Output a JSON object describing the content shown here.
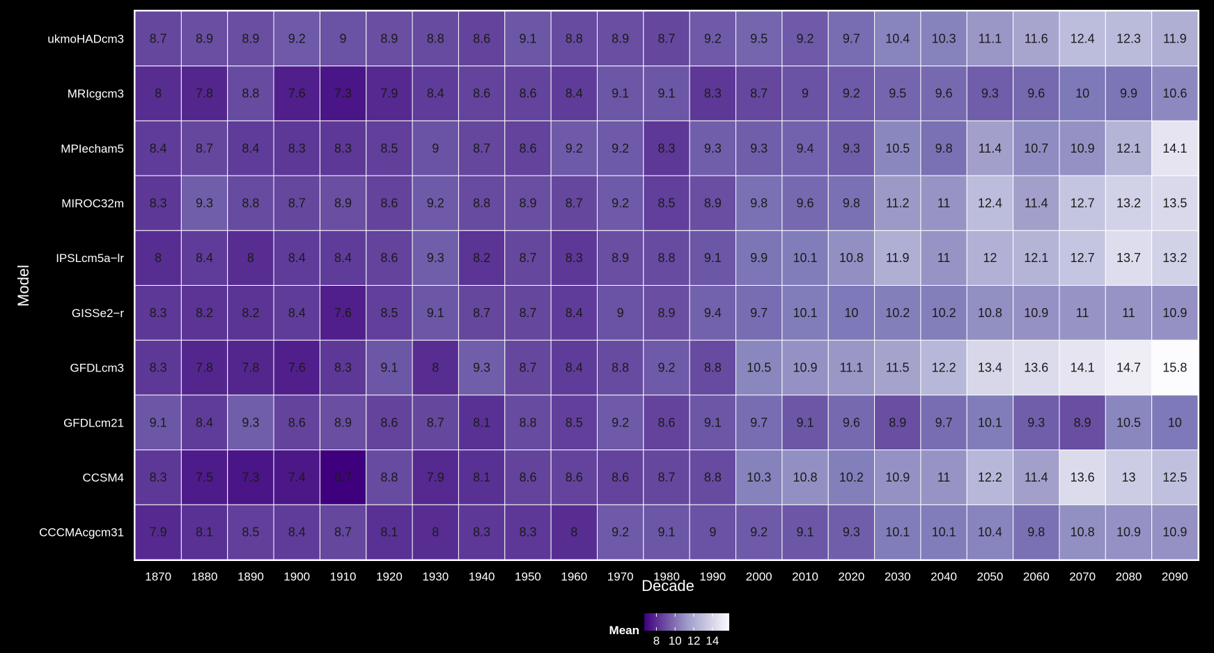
{
  "chart_data": {
    "type": "heatmap",
    "title": "",
    "xlabel": "Decade",
    "ylabel": "Model",
    "x": [
      "1870",
      "1880",
      "1890",
      "1900",
      "1910",
      "1920",
      "1930",
      "1940",
      "1950",
      "1960",
      "1970",
      "1980",
      "1990",
      "2000",
      "2010",
      "2020",
      "2030",
      "2040",
      "2050",
      "2060",
      "2070",
      "2080",
      "2090"
    ],
    "y": [
      "ukmoHADcm3",
      "MRIcgcm3",
      "MPIecham5",
      "MIROC32m",
      "IPSLcm5a−lr",
      "GISSe2−r",
      "GFDLcm3",
      "GFDLcm21",
      "CCSM4",
      "CCCMAcgcm31"
    ],
    "values": [
      [
        8.7,
        8.9,
        8.9,
        9.2,
        9,
        8.9,
        8.8,
        8.6,
        9.1,
        8.8,
        8.9,
        8.7,
        9.2,
        9.5,
        9.2,
        9.7,
        10.4,
        10.3,
        11.1,
        11.6,
        12.4,
        12.3,
        11.9
      ],
      [
        8,
        7.8,
        8.8,
        7.6,
        7.3,
        7.9,
        8.4,
        8.6,
        8.6,
        8.4,
        9.1,
        9.1,
        8.3,
        8.7,
        9,
        9.2,
        9.5,
        9.6,
        9.3,
        9.6,
        10,
        9.9,
        10.6
      ],
      [
        8.4,
        8.7,
        8.4,
        8.3,
        8.3,
        8.5,
        9,
        8.7,
        8.6,
        9.2,
        9.2,
        8.3,
        9.3,
        9.3,
        9.4,
        9.3,
        10.5,
        9.8,
        11.4,
        10.7,
        10.9,
        12.1,
        14.1
      ],
      [
        8.3,
        9.3,
        8.8,
        8.7,
        8.9,
        8.6,
        9.2,
        8.8,
        8.9,
        8.7,
        9.2,
        8.5,
        8.9,
        9.8,
        9.6,
        9.8,
        11.2,
        11,
        12.4,
        11.4,
        12.7,
        13.2,
        13.5
      ],
      [
        8,
        8.4,
        8,
        8.4,
        8.4,
        8.6,
        9.3,
        8.2,
        8.7,
        8.3,
        8.9,
        8.8,
        9.1,
        9.9,
        10.1,
        10.8,
        11.9,
        11,
        12,
        12.1,
        12.7,
        13.7,
        13.2
      ],
      [
        8.3,
        8.2,
        8.2,
        8.4,
        7.6,
        8.5,
        9.1,
        8.7,
        8.7,
        8.4,
        9,
        8.9,
        9.4,
        9.7,
        10.1,
        10,
        10.2,
        10.2,
        10.8,
        10.9,
        11,
        11,
        10.9
      ],
      [
        8.3,
        7.8,
        7.8,
        7.6,
        8.3,
        9.1,
        8,
        9.3,
        8.7,
        8.4,
        8.8,
        9.2,
        8.8,
        10.5,
        10.9,
        11.1,
        11.5,
        12.2,
        13.4,
        13.6,
        14.1,
        14.7,
        15.8
      ],
      [
        9.1,
        8.4,
        9.3,
        8.6,
        8.9,
        8.6,
        8.7,
        8.1,
        8.8,
        8.5,
        9.2,
        8.6,
        9.1,
        9.7,
        9.1,
        9.6,
        8.9,
        9.7,
        10.1,
        9.3,
        8.9,
        10.5,
        10
      ],
      [
        8.3,
        7.5,
        7.3,
        7.4,
        6.7,
        8.8,
        7.9,
        8.1,
        8.6,
        8.6,
        8.6,
        8.7,
        8.8,
        10.3,
        10.8,
        10.2,
        10.9,
        11,
        12.2,
        11.4,
        13.6,
        13,
        12.5
      ],
      [
        7.9,
        8.1,
        8.5,
        8.4,
        8.7,
        8.1,
        8,
        8.3,
        8.3,
        8,
        9.2,
        9.1,
        9,
        9.2,
        9.1,
        9.3,
        10.1,
        10.1,
        10.4,
        9.8,
        10.8,
        10.9,
        10.9
      ]
    ],
    "color_scale": {
      "low": "#3f007d",
      "high": "#fcfbfd",
      "min": 6.7,
      "max": 15.8
    },
    "legend": {
      "title": "Mean",
      "ticks": [
        8,
        10,
        12,
        14
      ],
      "placement": "bottom"
    },
    "grid": false
  },
  "colors": {
    "background": "#000000",
    "cell_border": "#ffffff",
    "text": "#ffffff",
    "cell_text": "#1a1a1a"
  }
}
